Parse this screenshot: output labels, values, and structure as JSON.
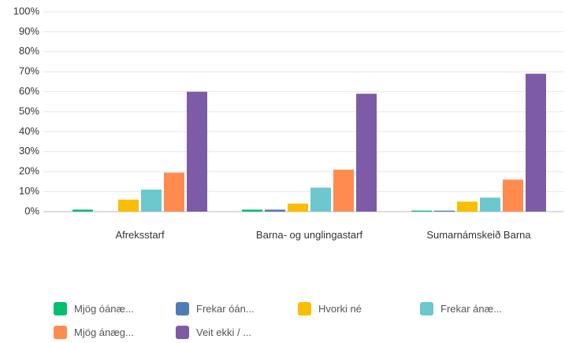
{
  "chart_data": {
    "type": "bar",
    "categories": [
      "Afreksstarf",
      "Barna- og unglingastarf",
      "Sumarnámskeið Barna"
    ],
    "series": [
      {
        "name": "Mjög óánæ...",
        "color": "#00bf6f",
        "values": [
          1,
          1,
          0.5
        ]
      },
      {
        "name": "Frekar óán...",
        "color": "#507cb6",
        "values": [
          0,
          1,
          0.5
        ]
      },
      {
        "name": "Hvorki né",
        "color": "#f9be00",
        "values": [
          6,
          4,
          5
        ]
      },
      {
        "name": "Frekar ánæ...",
        "color": "#6bc8cd",
        "values": [
          11,
          12,
          7
        ]
      },
      {
        "name": "Mjög ánæg...",
        "color": "#ff8b4f",
        "values": [
          19.5,
          21,
          16
        ]
      },
      {
        "name": "Veit ekki / ...",
        "color": "#7d5ba6",
        "values": [
          60,
          59,
          69
        ]
      }
    ],
    "ylim": [
      0,
      100
    ],
    "yticks": [
      {
        "value": 0,
        "label": "0%"
      },
      {
        "value": 10,
        "label": "10%"
      },
      {
        "value": 20,
        "label": "20%"
      },
      {
        "value": 30,
        "label": "30%"
      },
      {
        "value": 40,
        "label": "40%"
      },
      {
        "value": 50,
        "label": "50%"
      },
      {
        "value": 60,
        "label": "60%"
      },
      {
        "value": 70,
        "label": "70%"
      },
      {
        "value": 80,
        "label": "80%"
      },
      {
        "value": 90,
        "label": "90%"
      },
      {
        "value": 100,
        "label": "100%"
      }
    ],
    "grid": true
  }
}
